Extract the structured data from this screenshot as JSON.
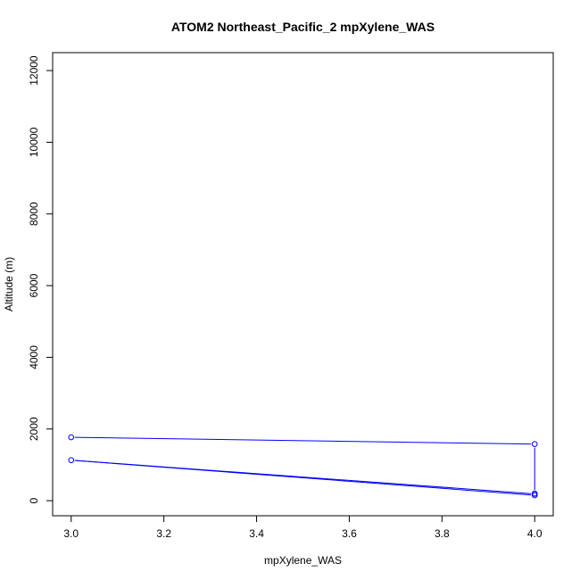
{
  "chart_data": {
    "type": "line",
    "title": "ATOM2 Northeast_Pacific_2 mpXylene_WAS",
    "xlabel": "mpXylene_WAS",
    "ylabel": "Altitude (m)",
    "xlim": [
      2.96,
      4.04
    ],
    "ylim": [
      -420,
      12500
    ],
    "x_ticks": [
      "3.0",
      "3.2",
      "3.4",
      "3.6",
      "3.8",
      "4.0"
    ],
    "y_ticks": [
      "0",
      "2000",
      "4000",
      "6000",
      "8000",
      "10000",
      "12000"
    ],
    "grid": false,
    "legend": "none",
    "series": [
      {
        "color": "#0000ff",
        "points": [
          {
            "x": 3.0,
            "y": 1770
          },
          {
            "x": 4.0,
            "y": 1580
          },
          {
            "x": 4.0,
            "y": 200
          },
          {
            "x": 4.0,
            "y": 150
          },
          {
            "x": 3.0,
            "y": 1130
          },
          {
            "x": 4.0,
            "y": 190
          }
        ]
      }
    ]
  }
}
